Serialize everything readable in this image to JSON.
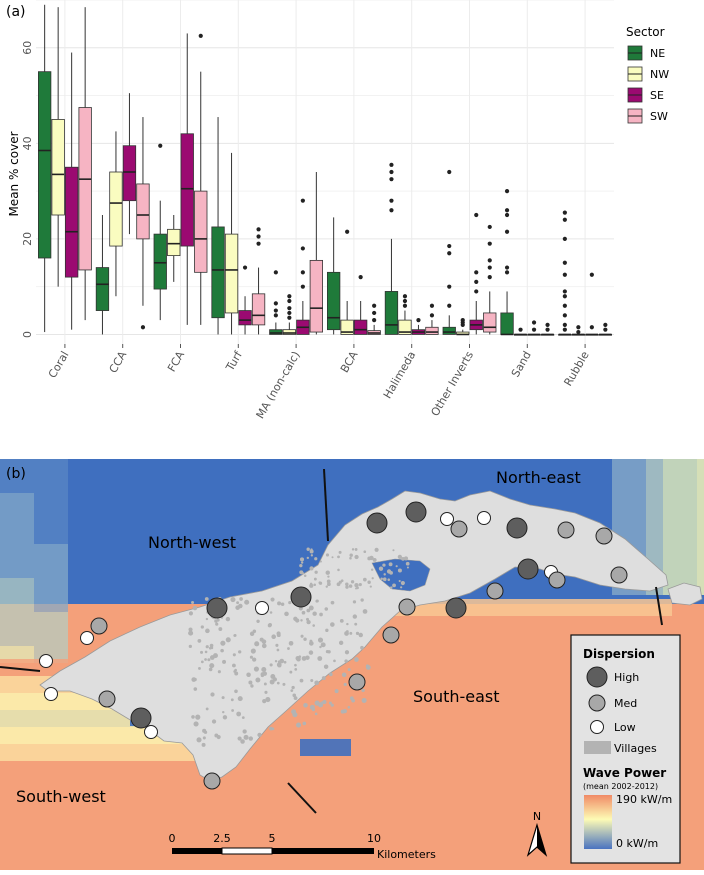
{
  "panel_a": {
    "label": "(a)",
    "chart_data": {
      "type": "box",
      "ylabel": "Mean % cover",
      "xlabel": "",
      "ylim": [
        -2,
        70
      ],
      "yticks": [
        0,
        20,
        40,
        60
      ],
      "categories": [
        "Coral",
        "CCA",
        "FCA",
        "Turf",
        "MA (non-calc)",
        "BCA",
        "Halimeda",
        "Other Inverts",
        "Sand",
        "Rubble"
      ],
      "legend": {
        "title": "Sector",
        "position": "top-right",
        "entries": [
          {
            "name": "NE",
            "color": "#1f7a3a"
          },
          {
            "name": "NW",
            "color": "#fafcc0"
          },
          {
            "name": "SE",
            "color": "#9b0a71"
          },
          {
            "name": "SW",
            "color": "#f6b4c3"
          }
        ]
      },
      "series": [
        {
          "name": "NE",
          "boxes": [
            {
              "category": "Coral",
              "min": 0.5,
              "q1": 16,
              "median": 38.5,
              "q3": 55,
              "max": 69,
              "outliers": []
            },
            {
              "category": "CCA",
              "min": 0,
              "q1": 5,
              "median": 10.5,
              "q3": 14,
              "max": 25,
              "outliers": []
            },
            {
              "category": "FCA",
              "min": 3,
              "q1": 9.5,
              "median": 15,
              "q3": 21,
              "max": 28,
              "outliers": [
                39.5
              ]
            },
            {
              "category": "Turf",
              "min": 0,
              "q1": 3.5,
              "median": 13.5,
              "q3": 22.5,
              "max": 45.5,
              "outliers": []
            },
            {
              "category": "MA (non-calc)",
              "min": 0,
              "q1": 0,
              "median": 0.3,
              "q3": 1,
              "max": 2.5,
              "outliers": [
                4,
                5,
                6.5,
                13
              ]
            },
            {
              "category": "BCA",
              "min": 0,
              "q1": 1,
              "median": 3.5,
              "q3": 13,
              "max": 24.5,
              "outliers": []
            },
            {
              "category": "Halimeda",
              "min": 0,
              "q1": 0,
              "median": 2,
              "q3": 9,
              "max": 20,
              "outliers": [
                26,
                28,
                32.5,
                34,
                35.5
              ]
            },
            {
              "category": "Other Inverts",
              "min": 0,
              "q1": 0,
              "median": 0.5,
              "q3": 1.5,
              "max": 4,
              "outliers": [
                6,
                10,
                17,
                18.5,
                34
              ]
            },
            {
              "category": "Sand",
              "min": 0,
              "q1": 0,
              "median": 0,
              "q3": 4.5,
              "max": 9,
              "outliers": [
                13,
                14,
                21.5,
                25,
                26,
                30
              ]
            },
            {
              "category": "Rubble",
              "min": 0,
              "q1": 0,
              "median": 0,
              "q3": 0,
              "max": 0,
              "outliers": [
                1,
                2,
                4,
                6,
                8,
                9,
                12.5,
                15,
                20,
                24,
                25.5
              ]
            }
          ]
        },
        {
          "name": "NW",
          "boxes": [
            {
              "category": "Coral",
              "min": 10,
              "q1": 25,
              "median": 33.5,
              "q3": 45,
              "max": 68.5,
              "outliers": []
            },
            {
              "category": "CCA",
              "min": 8,
              "q1": 18.5,
              "median": 27.5,
              "q3": 34,
              "max": 42.5,
              "outliers": []
            },
            {
              "category": "FCA",
              "min": 11,
              "q1": 16.5,
              "median": 19,
              "q3": 22,
              "max": 25,
              "outliers": []
            },
            {
              "category": "Turf",
              "min": 0,
              "q1": 4.5,
              "median": 13.5,
              "q3": 21,
              "max": 38,
              "outliers": []
            },
            {
              "category": "MA (non-calc)",
              "min": 0,
              "q1": 0,
              "median": 0.3,
              "q3": 1,
              "max": 2.5,
              "outliers": [
                3.5,
                4.5,
                5.5,
                7,
                8
              ]
            },
            {
              "category": "BCA",
              "min": 0,
              "q1": 0,
              "median": 0.5,
              "q3": 3,
              "max": 7,
              "outliers": [
                21.5
              ]
            },
            {
              "category": "Halimeda",
              "min": 0,
              "q1": 0,
              "median": 0.5,
              "q3": 3,
              "max": 5,
              "outliers": [
                6,
                7,
                8
              ]
            },
            {
              "category": "Other Inverts",
              "min": 0,
              "q1": 0,
              "median": 0,
              "q3": 0.5,
              "max": 1,
              "outliers": [
                2,
                2.5,
                3
              ]
            },
            {
              "category": "Sand",
              "min": 0,
              "q1": 0,
              "median": 0,
              "q3": 0,
              "max": 0,
              "outliers": [
                1
              ]
            },
            {
              "category": "Rubble",
              "min": 0,
              "q1": 0,
              "median": 0,
              "q3": 0,
              "max": 0,
              "outliers": [
                0.5,
                1.5
              ]
            }
          ]
        },
        {
          "name": "SE",
          "boxes": [
            {
              "category": "Coral",
              "min": 1,
              "q1": 12,
              "median": 21.5,
              "q3": 35,
              "max": 59,
              "outliers": []
            },
            {
              "category": "CCA",
              "min": 21,
              "q1": 28,
              "median": 34,
              "q3": 39.5,
              "max": 50.5,
              "outliers": []
            },
            {
              "category": "FCA",
              "min": 2,
              "q1": 18.5,
              "median": 30.5,
              "q3": 42,
              "max": 63,
              "outliers": []
            },
            {
              "category": "Turf",
              "min": 0,
              "q1": 2,
              "median": 3,
              "q3": 5,
              "max": 8,
              "outliers": [
                14
              ]
            },
            {
              "category": "MA (non-calc)",
              "min": 0,
              "q1": 0,
              "median": 1.5,
              "q3": 3,
              "max": 7,
              "outliers": [
                10,
                13,
                18,
                28
              ]
            },
            {
              "category": "BCA",
              "min": 0,
              "q1": 0,
              "median": 1,
              "q3": 3,
              "max": 7,
              "outliers": [
                12
              ]
            },
            {
              "category": "Halimeda",
              "min": 0,
              "q1": 0,
              "median": 0.5,
              "q3": 1,
              "max": 2,
              "outliers": [
                3
              ]
            },
            {
              "category": "Other Inverts",
              "min": 0,
              "q1": 1,
              "median": 2,
              "q3": 3,
              "max": 7,
              "outliers": [
                9,
                11,
                13,
                25
              ]
            },
            {
              "category": "Sand",
              "min": 0,
              "q1": 0,
              "median": 0,
              "q3": 0,
              "max": 0,
              "outliers": [
                1,
                2.5
              ]
            },
            {
              "category": "Rubble",
              "min": 0,
              "q1": 0,
              "median": 0,
              "q3": 0,
              "max": 0,
              "outliers": [
                1.5,
                12.5
              ]
            }
          ]
        },
        {
          "name": "SW",
          "boxes": [
            {
              "category": "Coral",
              "min": 3,
              "q1": 13.5,
              "median": 32.5,
              "q3": 47.5,
              "max": 68.5,
              "outliers": []
            },
            {
              "category": "CCA",
              "min": 6,
              "q1": 20,
              "median": 25,
              "q3": 31.5,
              "max": 45.5,
              "outliers": [
                1.5
              ]
            },
            {
              "category": "FCA",
              "min": 2,
              "q1": 13,
              "median": 20,
              "q3": 30,
              "max": 55,
              "outliers": [
                62.5
              ]
            },
            {
              "category": "Turf",
              "min": 0,
              "q1": 2,
              "median": 4,
              "q3": 8.5,
              "max": 14,
              "outliers": [
                19,
                20.5,
                22
              ]
            },
            {
              "category": "MA (non-calc)",
              "min": 0,
              "q1": 0.5,
              "median": 5.5,
              "q3": 15.5,
              "max": 34,
              "outliers": []
            },
            {
              "category": "BCA",
              "min": 0,
              "q1": 0,
              "median": 0.3,
              "q3": 0.8,
              "max": 2,
              "outliers": [
                3,
                4.5,
                6
              ]
            },
            {
              "category": "Halimeda",
              "min": 0,
              "q1": 0,
              "median": 0.5,
              "q3": 1.5,
              "max": 3,
              "outliers": [
                4,
                6
              ]
            },
            {
              "category": "Other Inverts",
              "min": 0,
              "q1": 0.5,
              "median": 1.5,
              "q3": 4.5,
              "max": 9,
              "outliers": [
                12,
                14,
                15.5,
                19,
                22.5
              ]
            },
            {
              "category": "Sand",
              "min": 0,
              "q1": 0,
              "median": 0,
              "q3": 0,
              "max": 0,
              "outliers": [
                1,
                2
              ]
            },
            {
              "category": "Rubble",
              "min": 0,
              "q1": 0,
              "median": 0,
              "q3": 0,
              "max": 0,
              "outliers": [
                1,
                2
              ]
            }
          ]
        }
      ]
    }
  },
  "panel_b": {
    "label": "(b)",
    "regions": [
      "North-west",
      "North-east",
      "South-east",
      "South-west"
    ],
    "legend": {
      "dispersion_title": "Dispersion",
      "dispersion_levels": [
        {
          "label": "High",
          "color": "#5e5e5e"
        },
        {
          "label": "Med",
          "color": "#a8a8a8"
        },
        {
          "label": "Low",
          "color": "#ffffff"
        }
      ],
      "villages_label": "Villages",
      "villages_color": "#b3b3b3",
      "wave_title": "Wave Power",
      "wave_subtitle": "(mean 2002-2012)",
      "wave_max": "190 kW/m",
      "wave_min": "0 kW/m",
      "colors": {
        "low": "#4a73c0",
        "mid": "#fdfbb5",
        "high": "#f08a66",
        "land": "#dedede"
      }
    },
    "scale_bar": {
      "ticks": [
        "0",
        "2.5",
        "5",
        "10"
      ],
      "unit": "Kilometers"
    },
    "north_arrow": "N"
  }
}
